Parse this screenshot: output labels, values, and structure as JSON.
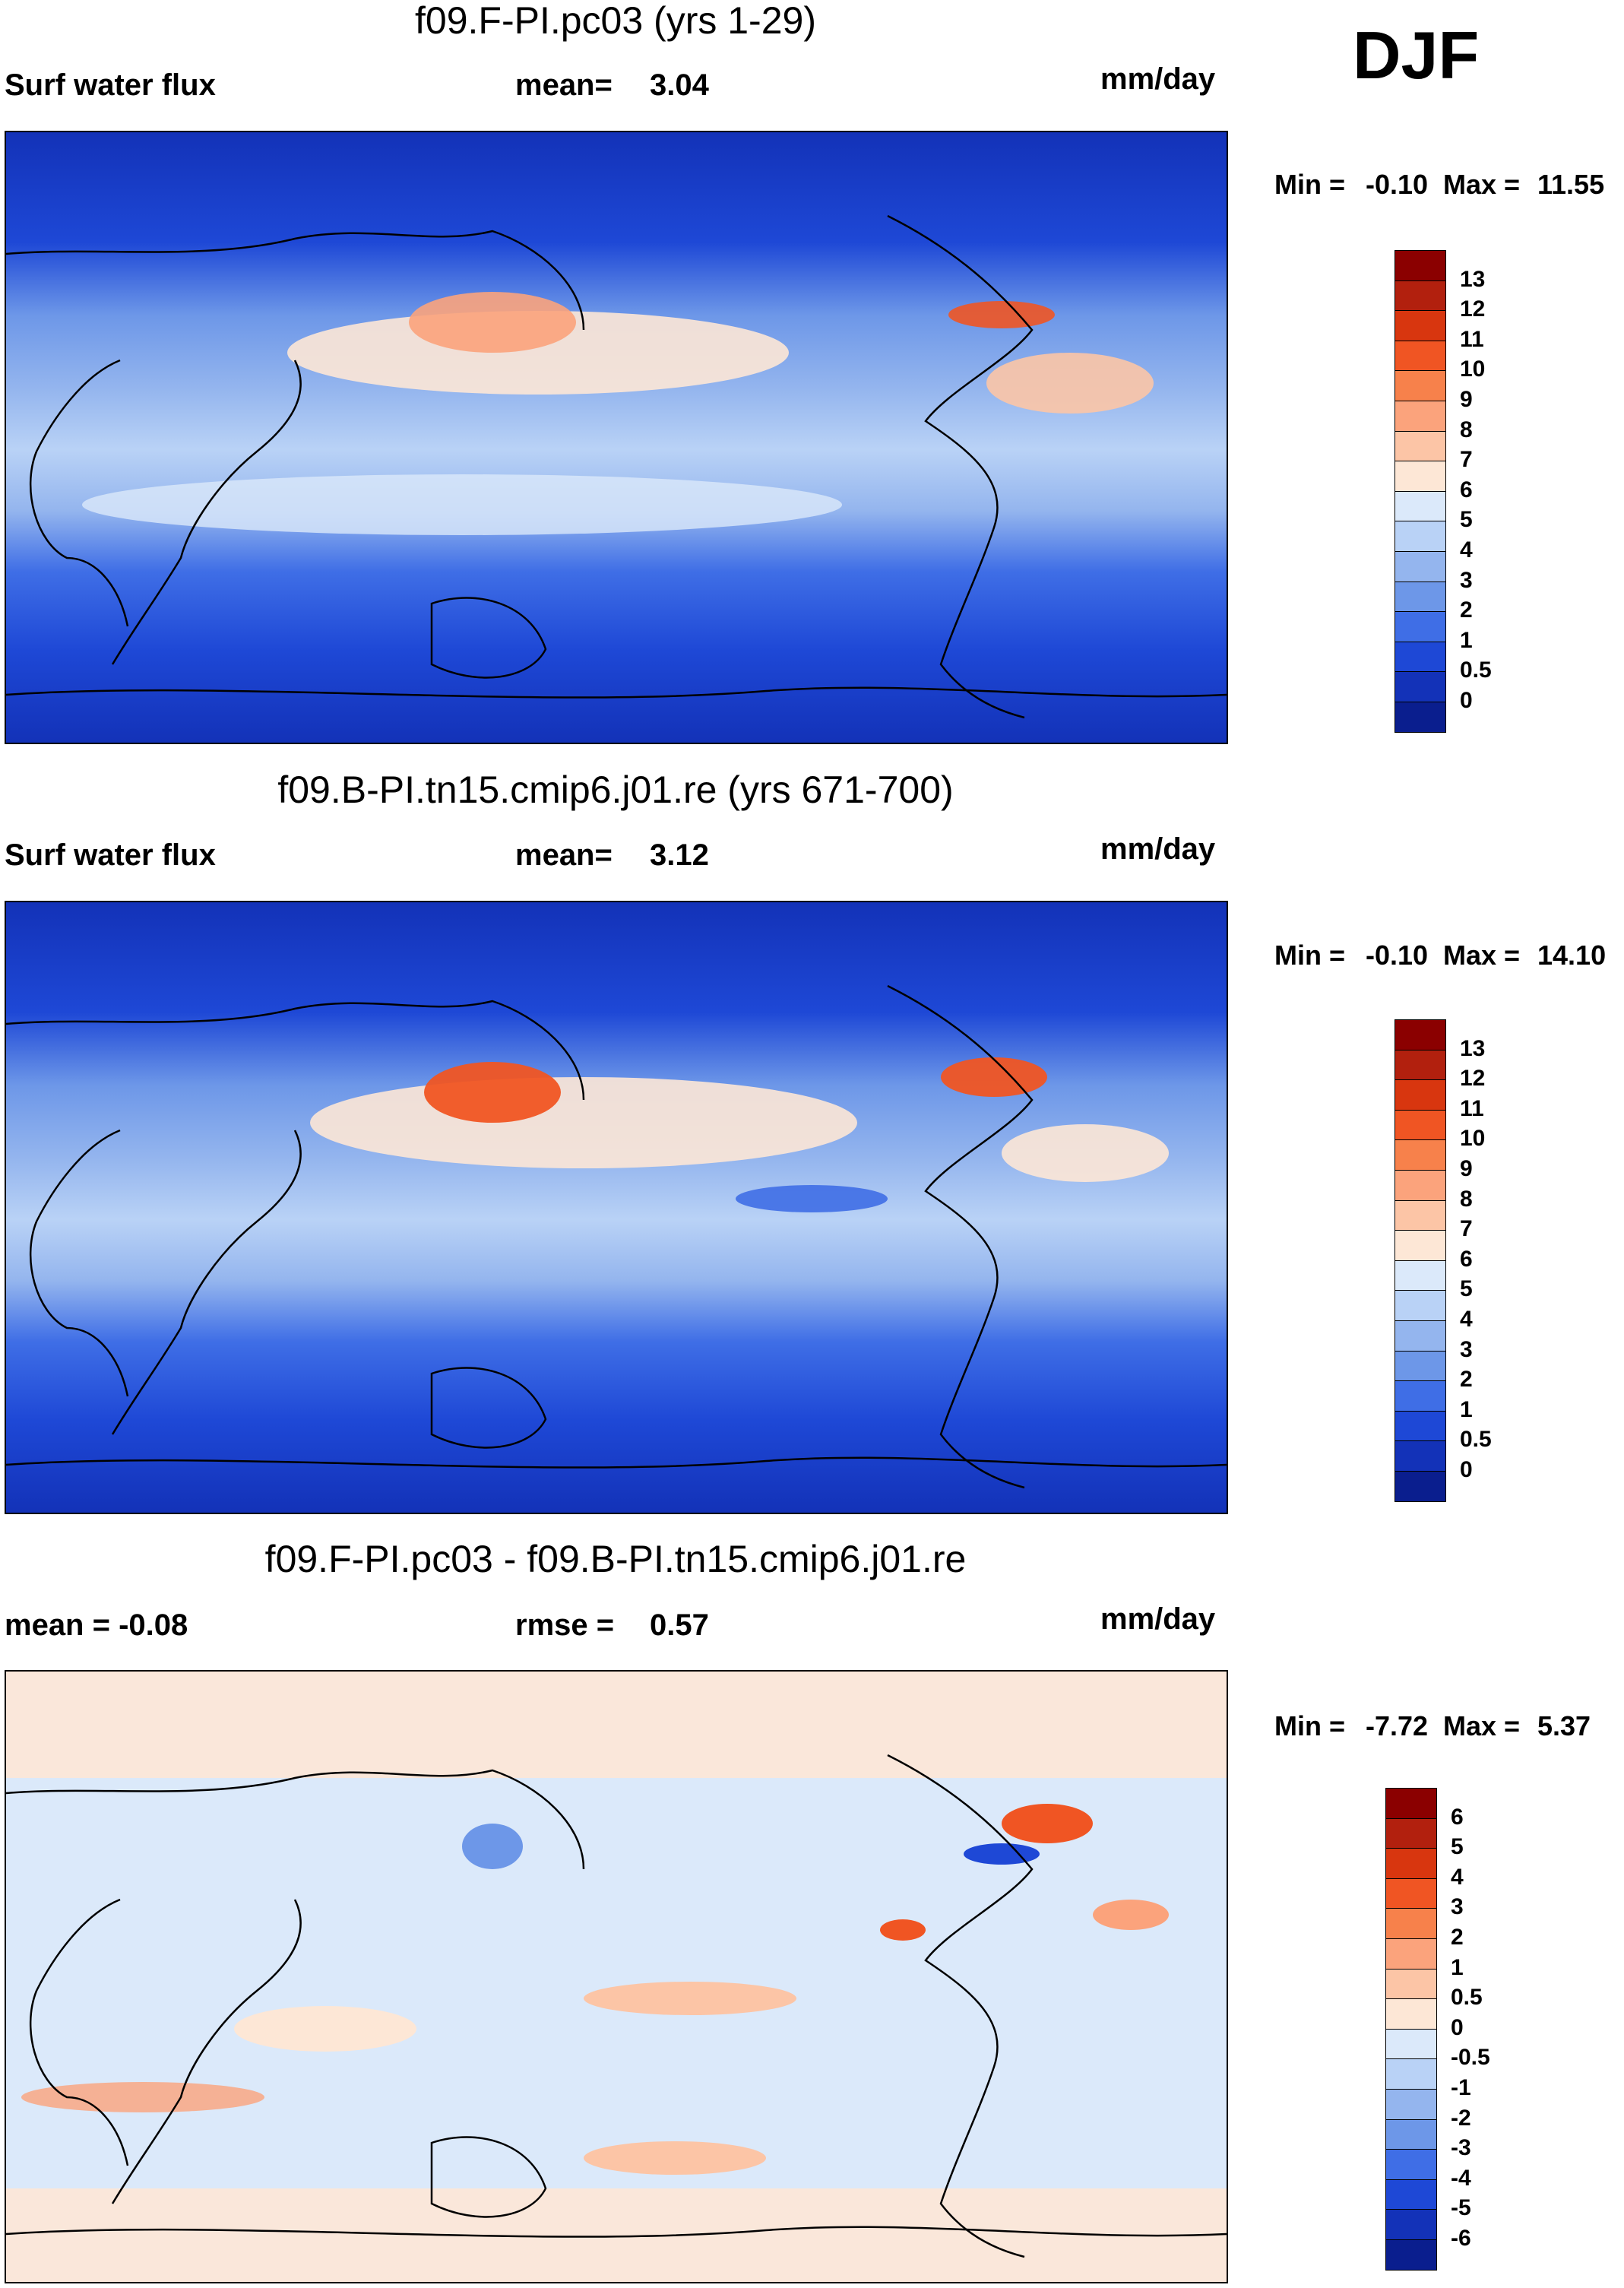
{
  "season_label": "DJF",
  "units_label": "mm/day",
  "panels": [
    {
      "id": "p1",
      "title": "f09.F-PI.pc03 (yrs 1-29)",
      "left_label": "Surf water flux",
      "stat_label": "mean=",
      "stat_value": "3.04",
      "min_label": "Min =",
      "min_value": "-0.10",
      "max_label": "Max =",
      "max_value": "11.55"
    },
    {
      "id": "p2",
      "title": "f09.B-PI.tn15.cmip6.j01.re (yrs 671-700)",
      "left_label": "Surf water flux",
      "stat_label": "mean=",
      "stat_value": "3.12",
      "min_label": "Min =",
      "min_value": "-0.10",
      "max_label": "Max =",
      "max_value": "14.10"
    },
    {
      "id": "p3",
      "title": "f09.F-PI.pc03 - f09.B-PI.tn15.cmip6.j01.re",
      "left_label": "mean =  -0.08",
      "stat_label": "rmse =",
      "stat_value": "0.57",
      "min_label": "Min =",
      "min_value": "-7.72",
      "max_label": "Max =",
      "max_value": "5.37"
    }
  ],
  "colorbars": {
    "abs": {
      "labels": [
        "13",
        "12",
        "11",
        "10",
        "9",
        "8",
        "7",
        "6",
        "5",
        "4",
        "3",
        "2",
        "1",
        "0.5",
        "0"
      ],
      "colors": [
        "#8b0000",
        "#b2200e",
        "#d8360f",
        "#f05523",
        "#f7814b",
        "#fba37c",
        "#fcc5a6",
        "#fde7d6",
        "#dbe9fa",
        "#b9d2f6",
        "#94b5ee",
        "#6d97e8",
        "#3f6ee6",
        "#1e48d6",
        "#1332b8",
        "#0a1e8e"
      ]
    },
    "diff": {
      "labels": [
        "6",
        "5",
        "4",
        "3",
        "2",
        "1",
        "0.5",
        "0",
        "-0.5",
        "-1",
        "-2",
        "-3",
        "-4",
        "-5",
        "-6"
      ],
      "colors": [
        "#8b0000",
        "#b2200e",
        "#d8360f",
        "#f05523",
        "#f7814b",
        "#fba37c",
        "#fcc5a6",
        "#fde7d6",
        "#dbe9fa",
        "#b9d2f6",
        "#94b5ee",
        "#6d97e8",
        "#3f6ee6",
        "#1e48d6",
        "#1332b8",
        "#0a1e8e"
      ]
    }
  },
  "chart_data": [
    {
      "type": "heatmap",
      "title": "f09.F-PI.pc03 (yrs 1-29)",
      "variable": "Surf water flux",
      "units": "mm/day",
      "season": "DJF",
      "mean": 3.04,
      "min": -0.1,
      "max": 11.55,
      "levels": [
        0,
        0.5,
        1,
        2,
        3,
        4,
        5,
        6,
        7,
        8,
        9,
        10,
        11,
        12,
        13
      ]
    },
    {
      "type": "heatmap",
      "title": "f09.B-PI.tn15.cmip6.j01.re (yrs 671-700)",
      "variable": "Surf water flux",
      "units": "mm/day",
      "season": "DJF",
      "mean": 3.12,
      "min": -0.1,
      "max": 14.1,
      "levels": [
        0,
        0.5,
        1,
        2,
        3,
        4,
        5,
        6,
        7,
        8,
        9,
        10,
        11,
        12,
        13
      ]
    },
    {
      "type": "heatmap",
      "title": "f09.F-PI.pc03 - f09.B-PI.tn15.cmip6.j01.re",
      "units": "mm/day",
      "season": "DJF",
      "mean": -0.08,
      "rmse": 0.57,
      "min": -7.72,
      "max": 5.37,
      "levels": [
        -6,
        -5,
        -4,
        -3,
        -2,
        -1,
        -0.5,
        0,
        0.5,
        1,
        2,
        3,
        4,
        5,
        6
      ]
    }
  ]
}
